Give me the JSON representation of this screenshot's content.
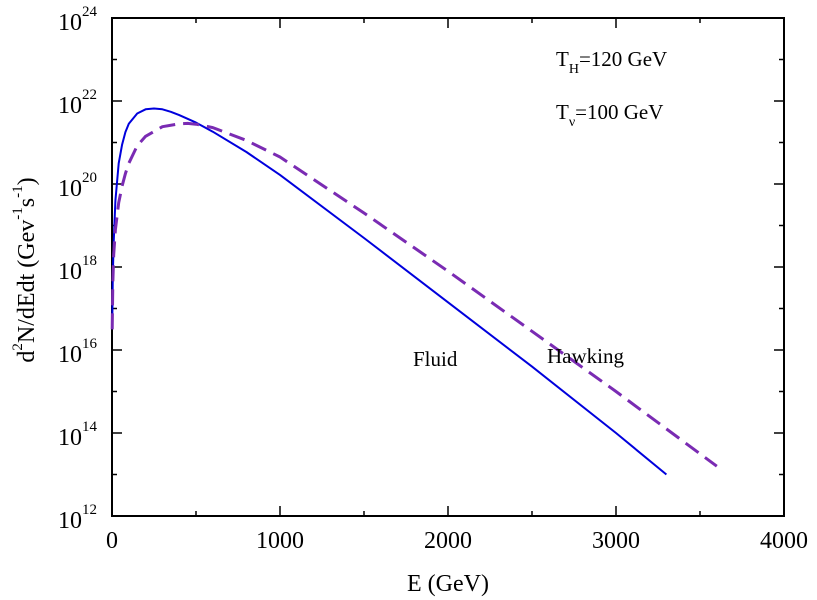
{
  "chart_data": {
    "type": "line",
    "title": "",
    "xlabel": "E (GeV)",
    "ylabel": {
      "parts": [
        "d",
        "2",
        "N/dEdt (Gev",
        "-1",
        "s",
        "-1",
        ")"
      ]
    },
    "xlim": [
      0,
      4000
    ],
    "ylim_log10": [
      12,
      24
    ],
    "y_scale": "log",
    "x_ticks": [
      "0",
      "1000",
      "2000",
      "3000",
      "4000"
    ],
    "y_ticks": [
      {
        "base": "10",
        "exp": "12"
      },
      {
        "base": "10",
        "exp": "14"
      },
      {
        "base": "10",
        "exp": "16"
      },
      {
        "base": "10",
        "exp": "18"
      },
      {
        "base": "10",
        "exp": "20"
      },
      {
        "base": "10",
        "exp": "22"
      },
      {
        "base": "10",
        "exp": "24"
      }
    ],
    "annotations": {
      "temp_hawking": {
        "main": "T",
        "sub": "H",
        "rest": "=120 GeV"
      },
      "temp_nu": {
        "main": "T",
        "sub": "ν",
        "rest": "=100 GeV"
      }
    },
    "series": [
      {
        "name": "Fluid",
        "color": "#0000dd",
        "dash": "solid",
        "label": "Fluid",
        "x": [
          1,
          5,
          10,
          20,
          40,
          60,
          80,
          100,
          150,
          200,
          250,
          300,
          350,
          400,
          500,
          600,
          800,
          1000,
          1500,
          2000,
          2500,
          3000,
          3300
        ],
        "log10_y": [
          16.5,
          17.8,
          18.6,
          19.6,
          20.5,
          20.95,
          21.25,
          21.45,
          21.7,
          21.8,
          21.82,
          21.8,
          21.74,
          21.66,
          21.48,
          21.26,
          20.77,
          20.22,
          18.7,
          17.15,
          15.6,
          14.0,
          13.0
        ]
      },
      {
        "name": "Hawking",
        "color": "#7a2bb3",
        "dash": "dashed",
        "label": "Hawking",
        "x": [
          1,
          5,
          10,
          20,
          40,
          60,
          80,
          100,
          150,
          200,
          300,
          400,
          450,
          500,
          600,
          800,
          1000,
          1500,
          2000,
          2500,
          3000,
          3500,
          3600
        ],
        "log10_y": [
          16.5,
          17.6,
          18.3,
          18.9,
          19.55,
          19.95,
          20.25,
          20.5,
          20.92,
          21.15,
          21.38,
          21.45,
          21.46,
          21.44,
          21.36,
          21.05,
          20.65,
          19.3,
          17.9,
          16.45,
          15.0,
          13.5,
          13.2
        ]
      }
    ]
  }
}
